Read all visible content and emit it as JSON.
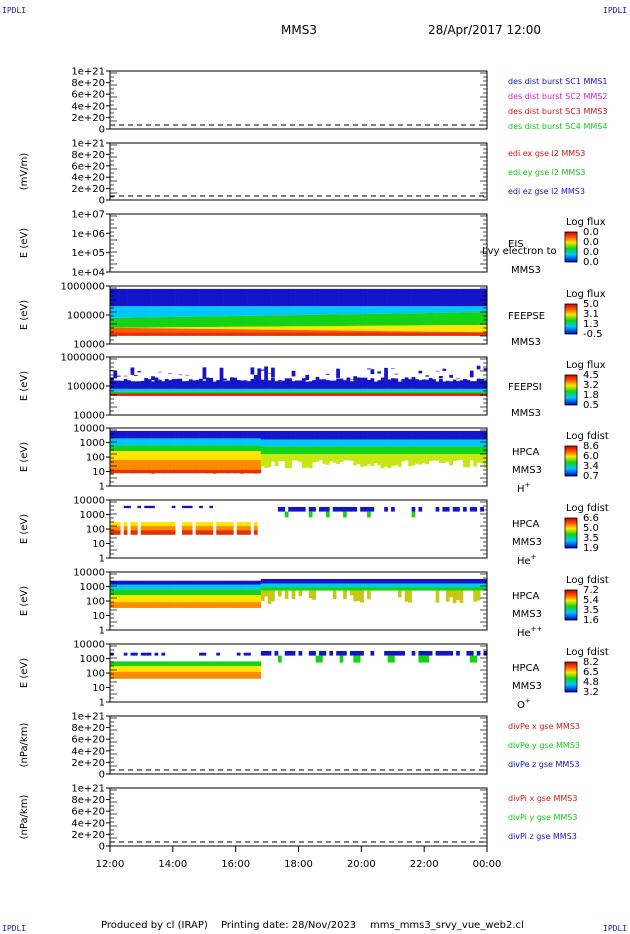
{
  "header": {
    "corner_label": "IPDLI",
    "mission": "MMS3",
    "date_time": "28/Apr/2017 12:00"
  },
  "footer": {
    "produced_by": "Produced by cl (IRAP)",
    "printing_date": "Printing date: 28/Nov/2023",
    "script_name": "mms_mms3_srvy_vue_web2.cl"
  },
  "colors": {
    "red": "#d81414",
    "magenta": "#d814d8",
    "green": "#14c814",
    "blue": "#1414c8"
  },
  "chart_data": {
    "type": "heatmap",
    "x_tick_labels": [
      "12:00",
      "14:00",
      "16:00",
      "18:00",
      "20:00",
      "22:00",
      "00:00"
    ],
    "time_range": [
      "12:00",
      "00:00"
    ],
    "panels": [
      {
        "id": "p1",
        "kind": "line",
        "ylabel": "",
        "yticks": [
          "1e+21",
          "8e+20",
          "6e+20",
          "4e+20",
          "2e+20",
          "0"
        ],
        "series": [
          {
            "name": "des dist burst SC1 MMS1",
            "color": "#1414c8"
          },
          {
            "name": "des dist burst SC2 MMS2",
            "color": "#d814d8"
          },
          {
            "name": "des dist burst SC3 MMS3",
            "color": "#d81414"
          },
          {
            "name": "des dist burst SC4 MMS4",
            "color": "#14c814"
          }
        ]
      },
      {
        "id": "p2",
        "kind": "line",
        "ylabel": "(mV/m)",
        "yticks": [
          "1e+21",
          "8e+20",
          "6e+20",
          "4e+20",
          "2e+20",
          "0"
        ],
        "series": [
          {
            "name": "edi ex gse l2 MMS3",
            "color": "#d81414"
          },
          {
            "name": "edi ey gse l2 MMS3",
            "color": "#14c814"
          },
          {
            "name": "edi ez gse l2 MMS3",
            "color": "#1414c8"
          }
        ]
      },
      {
        "id": "p3",
        "kind": "spec",
        "ylabel": "E (eV)",
        "yticks": [
          "1e+07",
          "1e+06",
          "1e+05",
          "1e+04"
        ],
        "label_lines": [
          "EIS",
          "MMS3"
        ],
        "overlay_label": "Lvy electron to",
        "cbar_title": "Log flux",
        "cbar_ticks": [
          "0.0",
          "0.0",
          "0.0",
          "0.0"
        ]
      },
      {
        "id": "p4",
        "kind": "spec",
        "ylabel": "E (eV)",
        "yticks": [
          "1000000",
          "100000",
          "10000"
        ],
        "label_lines": [
          "FEEPSE",
          "MMS3"
        ],
        "cbar_title": "Log flux",
        "cbar_ticks": [
          "5.0",
          "3.1",
          "1.3",
          "-0.5"
        ]
      },
      {
        "id": "p5",
        "kind": "spec",
        "ylabel": "E (eV)",
        "yticks": [
          "1000000",
          "100000",
          "10000"
        ],
        "label_lines": [
          "FEEPSI",
          "MMS3"
        ],
        "cbar_title": "Log flux",
        "cbar_ticks": [
          "4.5",
          "3.2",
          "1.8",
          "0.5"
        ]
      },
      {
        "id": "p6",
        "kind": "spec",
        "ylabel": "E (eV)",
        "yticks": [
          "10000",
          "1000",
          "100",
          "10",
          "1"
        ],
        "label_lines": [
          "HPCA",
          "MMS3"
        ],
        "species": "H",
        "species_sup": "+",
        "cbar_title": "Log fdist",
        "cbar_ticks": [
          "8.6",
          "6.0",
          "3.4",
          "0.7"
        ]
      },
      {
        "id": "p7",
        "kind": "spec",
        "ylabel": "E (eV)",
        "yticks": [
          "10000",
          "1000",
          "100",
          "10",
          "1"
        ],
        "label_lines": [
          "HPCA",
          "MMS3"
        ],
        "species": "He",
        "species_sup": "+",
        "cbar_title": "Log fdist",
        "cbar_ticks": [
          "6.6",
          "5.0",
          "3.5",
          "1.9"
        ]
      },
      {
        "id": "p8",
        "kind": "spec",
        "ylabel": "E (eV)",
        "yticks": [
          "10000",
          "1000",
          "100",
          "10",
          "1"
        ],
        "label_lines": [
          "HPCA",
          "MMS3"
        ],
        "species": "He",
        "species_sup": "++",
        "cbar_title": "Log fdist",
        "cbar_ticks": [
          "7.2",
          "5.4",
          "3.5",
          "1.6"
        ]
      },
      {
        "id": "p9",
        "kind": "spec",
        "ylabel": "E (eV)",
        "yticks": [
          "10000",
          "1000",
          "100",
          "10",
          "1"
        ],
        "label_lines": [
          "HPCA",
          "MMS3"
        ],
        "species": "O",
        "species_sup": "+",
        "cbar_title": "Log fdist",
        "cbar_ticks": [
          "8.2",
          "6.5",
          "4.8",
          "3.2"
        ]
      },
      {
        "id": "p10",
        "kind": "line",
        "ylabel": "(nPa/km)",
        "yticks": [
          "1e+21",
          "8e+20",
          "6e+20",
          "4e+20",
          "2e+20",
          "0"
        ],
        "series": [
          {
            "name": "divPe x gse MMS3",
            "color": "#d81414"
          },
          {
            "name": "divPe y gse MMS3",
            "color": "#14c814"
          },
          {
            "name": "divPe z gse MMS3",
            "color": "#1414c8"
          }
        ]
      },
      {
        "id": "p11",
        "kind": "line",
        "ylabel": "(nPa/km)",
        "yticks": [
          "1e+21",
          "8e+20",
          "6e+20",
          "4e+20",
          "2e+20",
          "0"
        ],
        "series": [
          {
            "name": "divPi x gse MMS3",
            "color": "#d81414"
          },
          {
            "name": "divPi y gse MMS3",
            "color": "#14c814"
          },
          {
            "name": "divPi z gse MMS3",
            "color": "#1414c8"
          }
        ]
      }
    ]
  }
}
